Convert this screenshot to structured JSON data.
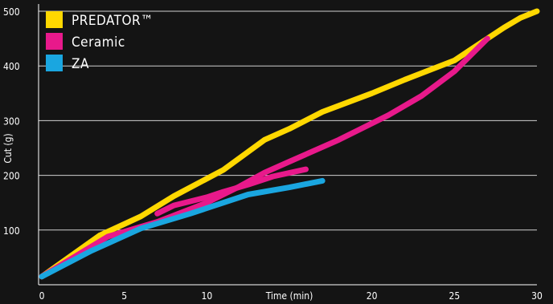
{
  "chart_data": {
    "type": "line",
    "xlabel": "Time (min)",
    "ylabel": "Cut (g)",
    "xlim": [
      0,
      30
    ],
    "ylim": [
      0,
      500
    ],
    "x_ticks": [
      0,
      5,
      10,
      20,
      25,
      30
    ],
    "x_tick_labels": [
      "0",
      "5",
      "10",
      "20",
      "25",
      "30"
    ],
    "y_ticks": [
      100,
      200,
      300,
      400,
      500
    ],
    "y_tick_labels": [
      "100",
      "200",
      "300",
      "400",
      "500"
    ],
    "grid": "horizontal",
    "legend_position": "top-left",
    "background": "#141414",
    "series": [
      {
        "name": "PREDATOR™",
        "color": "#ffd800",
        "x": [
          0,
          3.5,
          6,
          8,
          11,
          13.5,
          15,
          17,
          20,
          22,
          25,
          26,
          27,
          28,
          29,
          30
        ],
        "y": [
          15,
          90,
          125,
          162,
          210,
          265,
          285,
          316,
          350,
          375,
          410,
          430,
          450,
          470,
          488,
          500
        ]
      },
      {
        "name": "Ceramic",
        "color": "#e8198b",
        "x": [
          0,
          4,
          7,
          10,
          12,
          13.5,
          15,
          18,
          21,
          23,
          25,
          27
        ],
        "y": [
          15,
          88,
          115,
          150,
          180,
          205,
          225,
          265,
          310,
          345,
          390,
          450
        ]
      },
      {
        "name": "Ceramic",
        "color": "#e8198b",
        "x": [
          7,
          8,
          10,
          11,
          12.5,
          14,
          16
        ],
        "y": [
          130,
          145,
          160,
          170,
          183,
          198,
          211
        ]
      },
      {
        "name": "ZA",
        "color": "#1aa6e0",
        "x": [
          0,
          3,
          6,
          9,
          12.5,
          15,
          17
        ],
        "y": [
          15,
          62,
          103,
          130,
          165,
          178,
          190
        ]
      }
    ],
    "legend": [
      {
        "label": "PREDATOR™",
        "color": "#ffd800"
      },
      {
        "label": "Ceramic",
        "color": "#e8198b"
      },
      {
        "label": "ZA",
        "color": "#1aa6e0"
      }
    ]
  }
}
